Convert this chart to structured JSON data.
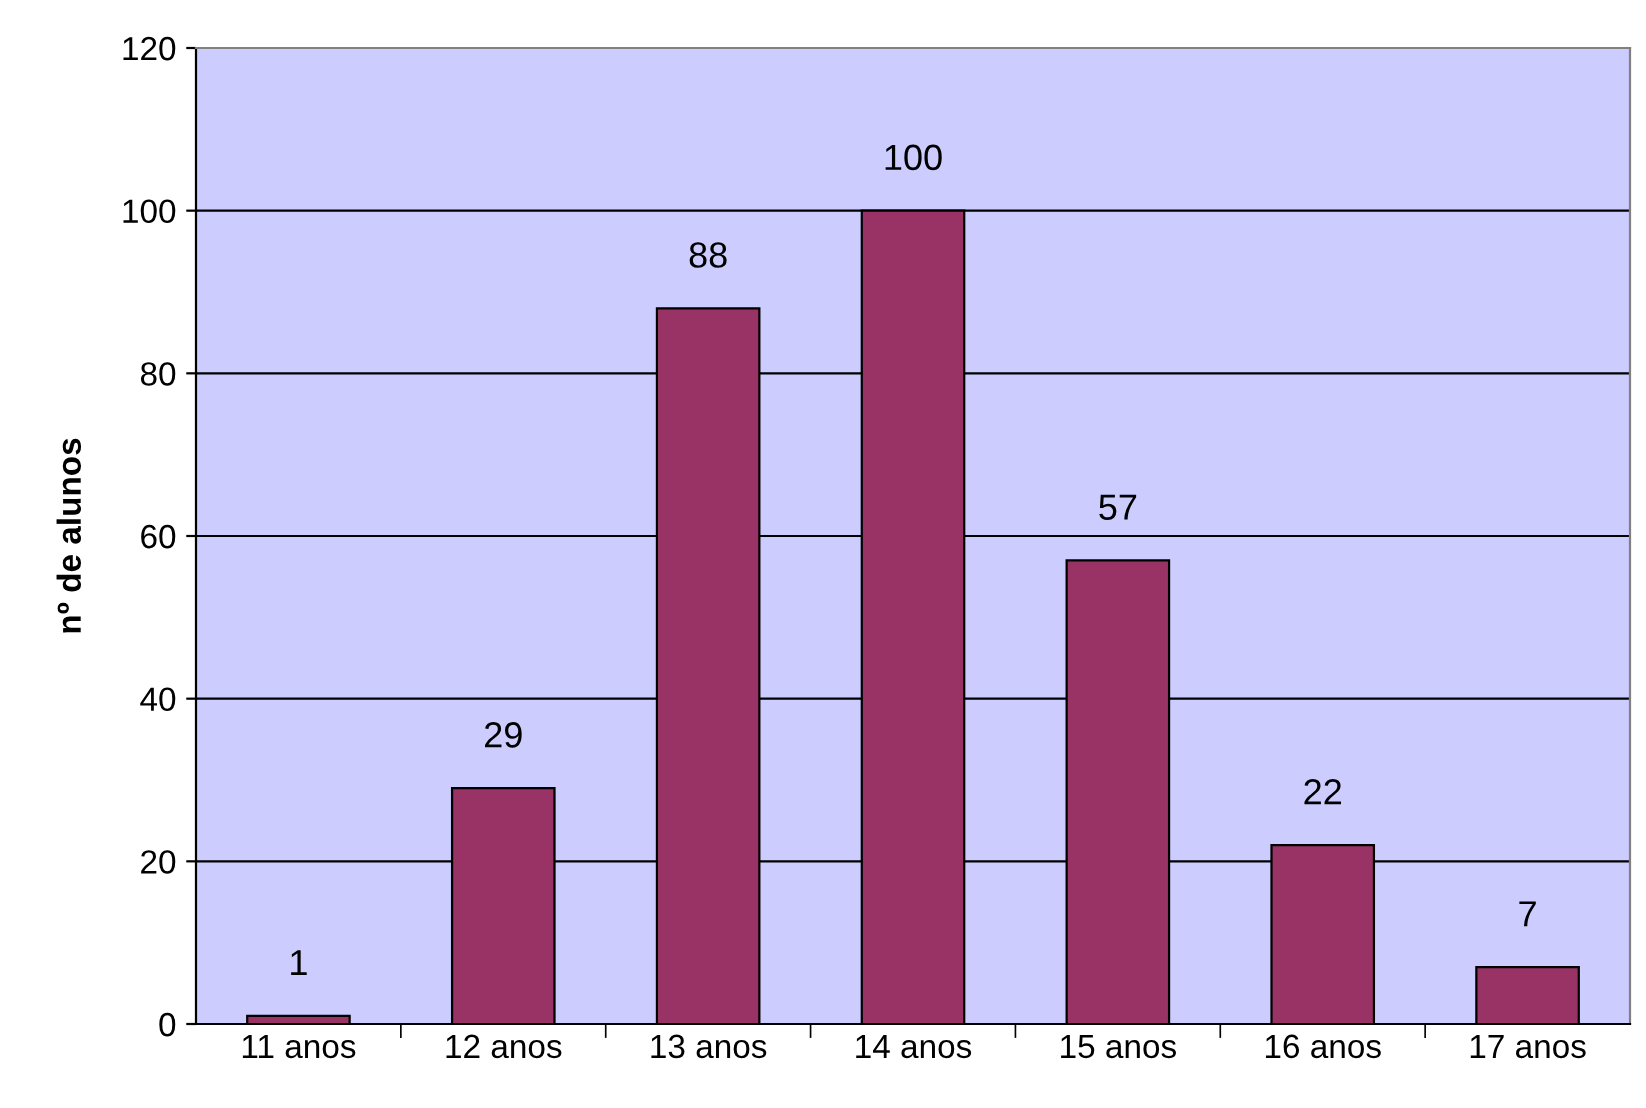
{
  "chart_data": {
    "type": "bar",
    "ylabel": "nº de alunos",
    "categories": [
      "11 anos",
      "12 anos",
      "13 anos",
      "14 anos",
      "15 anos",
      "16 anos",
      "17 anos"
    ],
    "values": [
      1,
      29,
      88,
      100,
      57,
      22,
      7
    ],
    "color": "#993366",
    "ylim": [
      0,
      120
    ],
    "yticks": [
      0,
      20,
      40,
      60,
      80,
      100,
      120
    ],
    "grid": "y",
    "data_labels": true
  }
}
